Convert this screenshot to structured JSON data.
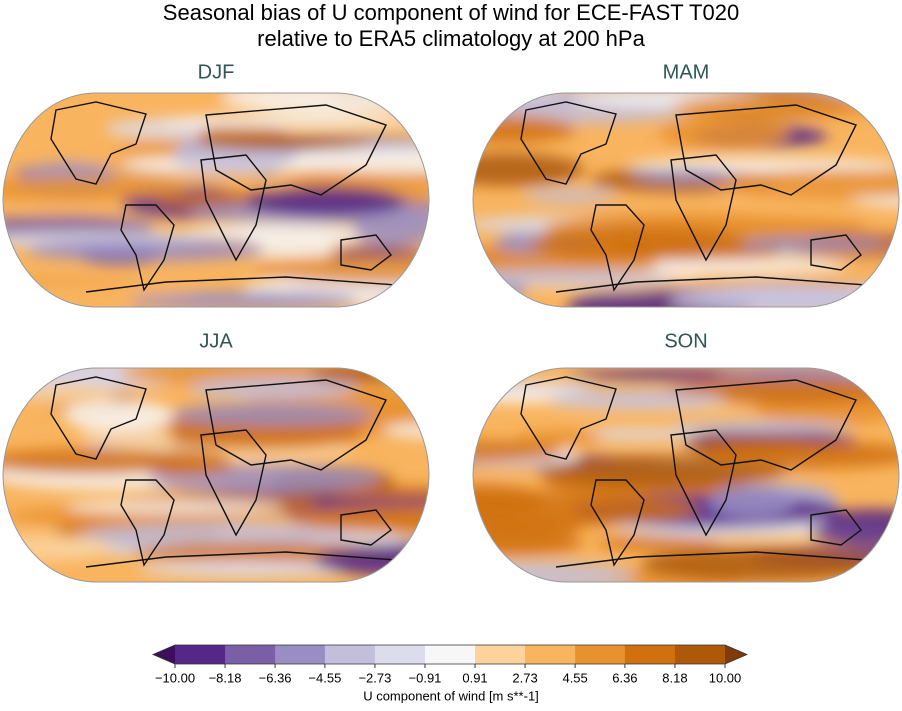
{
  "title": [
    "Seasonal bias of U component of wind for ECE-FAST T020",
    "relative to ERA5 climatology at 200 hPa"
  ],
  "panels": [
    {
      "title": "DJF"
    },
    {
      "title": "MAM"
    },
    {
      "title": "JJA"
    },
    {
      "title": "SON"
    }
  ],
  "colorbar": {
    "label": "U component of wind [m s**-1]",
    "ticks": [
      {
        "value": -10.0,
        "label": "−10.00"
      },
      {
        "value": -8.18,
        "label": "−8.18"
      },
      {
        "value": -6.36,
        "label": "−6.36"
      },
      {
        "value": -4.55,
        "label": "−4.55"
      },
      {
        "value": -2.73,
        "label": "−2.73"
      },
      {
        "value": -0.91,
        "label": "−0.91"
      },
      0.91,
      2.73,
      4.55,
      6.36,
      8.18,
      {
        "value": 10.0,
        "label": "10.00"
      }
    ],
    "colors": [
      "#542788",
      "#7a5fa6",
      "#998ec3",
      "#c2bedc",
      "#dddcec",
      "#f7f7f7",
      "#fdd29b",
      "#f9b45f",
      "#e8912f",
      "#d0700f",
      "#ad5909"
    ],
    "under": "#3b0f5e",
    "over": "#7f3b08"
  }
}
